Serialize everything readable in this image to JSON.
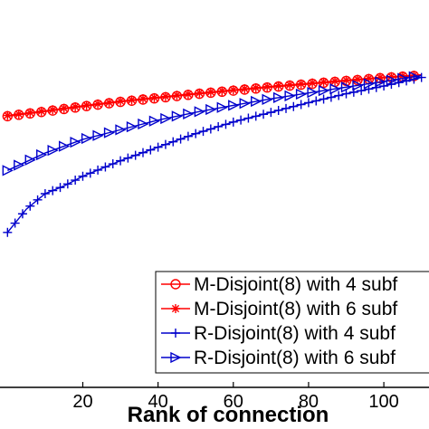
{
  "chart_data": {
    "type": "line",
    "xlabel": "Rank of connection",
    "ylabel": "",
    "title": "",
    "xlim": [
      -2,
      112
    ],
    "ylim": [
      0.0,
      1.0
    ],
    "x_ticks": [
      "20",
      "40",
      "60",
      "80",
      "100"
    ],
    "grid": false,
    "legend_position": "bottom-right",
    "series": [
      {
        "name": "M-Disjoint(8) with 4 subf",
        "color": "#ff0000",
        "marker": "circle",
        "x": [
          0,
          10,
          20,
          30,
          40,
          50,
          60,
          70,
          80,
          90,
          100,
          110
        ],
        "y": [
          0.7,
          0.712,
          0.725,
          0.737,
          0.747,
          0.757,
          0.766,
          0.775,
          0.783,
          0.791,
          0.799,
          0.805
        ]
      },
      {
        "name": "M-Disjoint(8) with 6 subf",
        "color": "#ff0000",
        "marker": "star",
        "x": [
          0,
          10,
          20,
          30,
          40,
          50,
          60,
          70,
          80,
          90,
          100,
          110
        ],
        "y": [
          0.702,
          0.714,
          0.727,
          0.739,
          0.749,
          0.759,
          0.768,
          0.777,
          0.785,
          0.793,
          0.801,
          0.807
        ]
      },
      {
        "name": "R-Disjoint(8) with 4 subf",
        "color": "#0000cc",
        "marker": "plus",
        "x": [
          0,
          5,
          10,
          15,
          20,
          30,
          40,
          50,
          60,
          70,
          80,
          90,
          100,
          110
        ],
        "y": [
          0.4,
          0.46,
          0.5,
          0.52,
          0.545,
          0.585,
          0.62,
          0.655,
          0.685,
          0.71,
          0.735,
          0.758,
          0.778,
          0.8
        ]
      },
      {
        "name": "R-Disjoint(8) with 6 subf",
        "color": "#0000cc",
        "marker": "triangle-right",
        "x": [
          0,
          10,
          20,
          30,
          40,
          50,
          60,
          70,
          80,
          90,
          100,
          110
        ],
        "y": [
          0.56,
          0.605,
          0.64,
          0.665,
          0.69,
          0.71,
          0.728,
          0.745,
          0.76,
          0.775,
          0.79,
          0.805
        ]
      }
    ]
  }
}
